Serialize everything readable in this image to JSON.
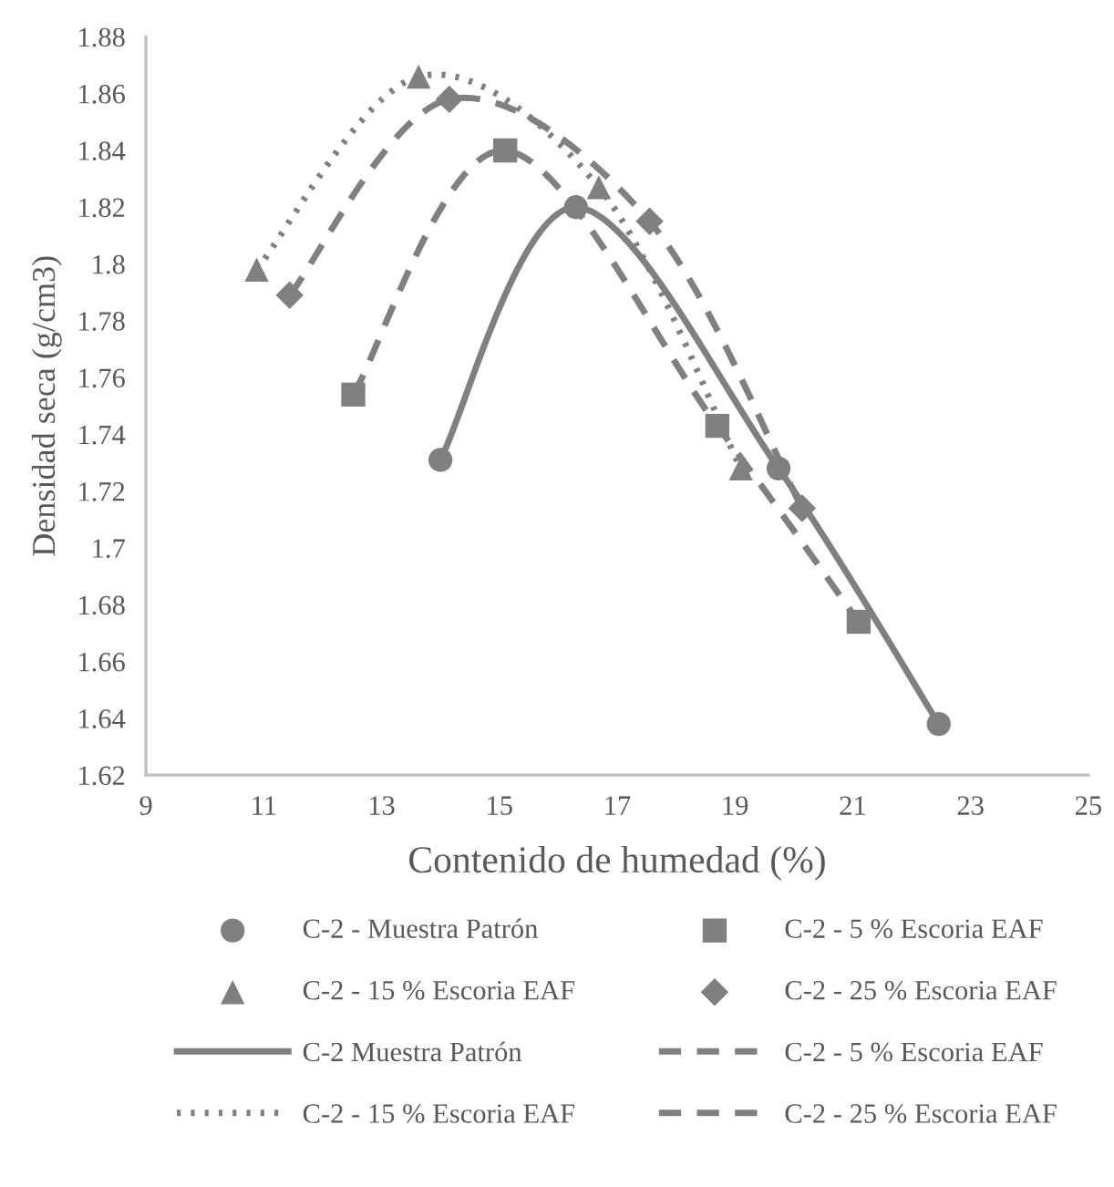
{
  "chart_data": {
    "type": "scatter",
    "xlabel": "Contenido de humedad (%)",
    "ylabel": "Densidad seca (g/cm3)",
    "xlim": [
      9,
      25
    ],
    "xticks": [
      9,
      11,
      13,
      15,
      17,
      19,
      21,
      23,
      25
    ],
    "ylim": [
      1.62,
      1.88
    ],
    "yticks": [
      1.62,
      1.64,
      1.66,
      1.68,
      1.7,
      1.72,
      1.74,
      1.76,
      1.78,
      1.8,
      1.82,
      1.84,
      1.86,
      1.88
    ],
    "grid": false,
    "legend": "bottom",
    "series": [
      {
        "name": "C-2 - Muestra Patrón",
        "marker": "circle",
        "color": "#808080",
        "x": [
          14.0,
          16.3,
          19.74,
          22.46
        ],
        "values": [
          1.731,
          1.82,
          1.728,
          1.638
        ]
      },
      {
        "name": "C-2 - 5 % Escoria EAF",
        "marker": "square",
        "color": "#808080",
        "x": [
          12.52,
          15.1,
          18.7,
          21.1
        ],
        "values": [
          1.754,
          1.84,
          1.743,
          1.674
        ]
      },
      {
        "name": "C-2 - 15 % Escoria EAF",
        "marker": "triangle",
        "color": "#808080",
        "x": [
          10.88,
          13.63,
          16.69,
          19.1
        ],
        "values": [
          1.798,
          1.866,
          1.827,
          1.728
        ]
      },
      {
        "name": "C-2 - 25 % Escoria EAF",
        "marker": "diamond",
        "color": "#808080",
        "x": [
          11.44,
          14.15,
          17.55,
          20.14
        ],
        "values": [
          1.789,
          1.858,
          1.815,
          1.714
        ]
      },
      {
        "name": "C-2 Muestra Patrón",
        "type": "line",
        "line_style": "solid",
        "color": "#808080",
        "x": [
          14.0,
          16.3,
          19.74,
          22.46
        ],
        "values": [
          1.731,
          1.82,
          1.728,
          1.638
        ]
      },
      {
        "name": "C-2 - 5 % Escoria EAF",
        "type": "line",
        "line_style": "dashed",
        "color": "#808080",
        "x": [
          12.52,
          15.1,
          18.7,
          21.1
        ],
        "values": [
          1.754,
          1.84,
          1.743,
          1.674
        ]
      },
      {
        "name": "C-2 - 15 % Escoria EAF",
        "type": "line",
        "line_style": "dotted",
        "color": "#808080",
        "x": [
          10.88,
          13.63,
          16.69,
          19.1
        ],
        "values": [
          1.798,
          1.866,
          1.827,
          1.728
        ]
      },
      {
        "name": "C-2 - 25 % Escoria EAF",
        "type": "line",
        "line_style": "dashed",
        "color": "#808080",
        "x": [
          11.44,
          14.15,
          17.55,
          20.14
        ],
        "values": [
          1.789,
          1.858,
          1.815,
          1.714
        ]
      }
    ]
  }
}
